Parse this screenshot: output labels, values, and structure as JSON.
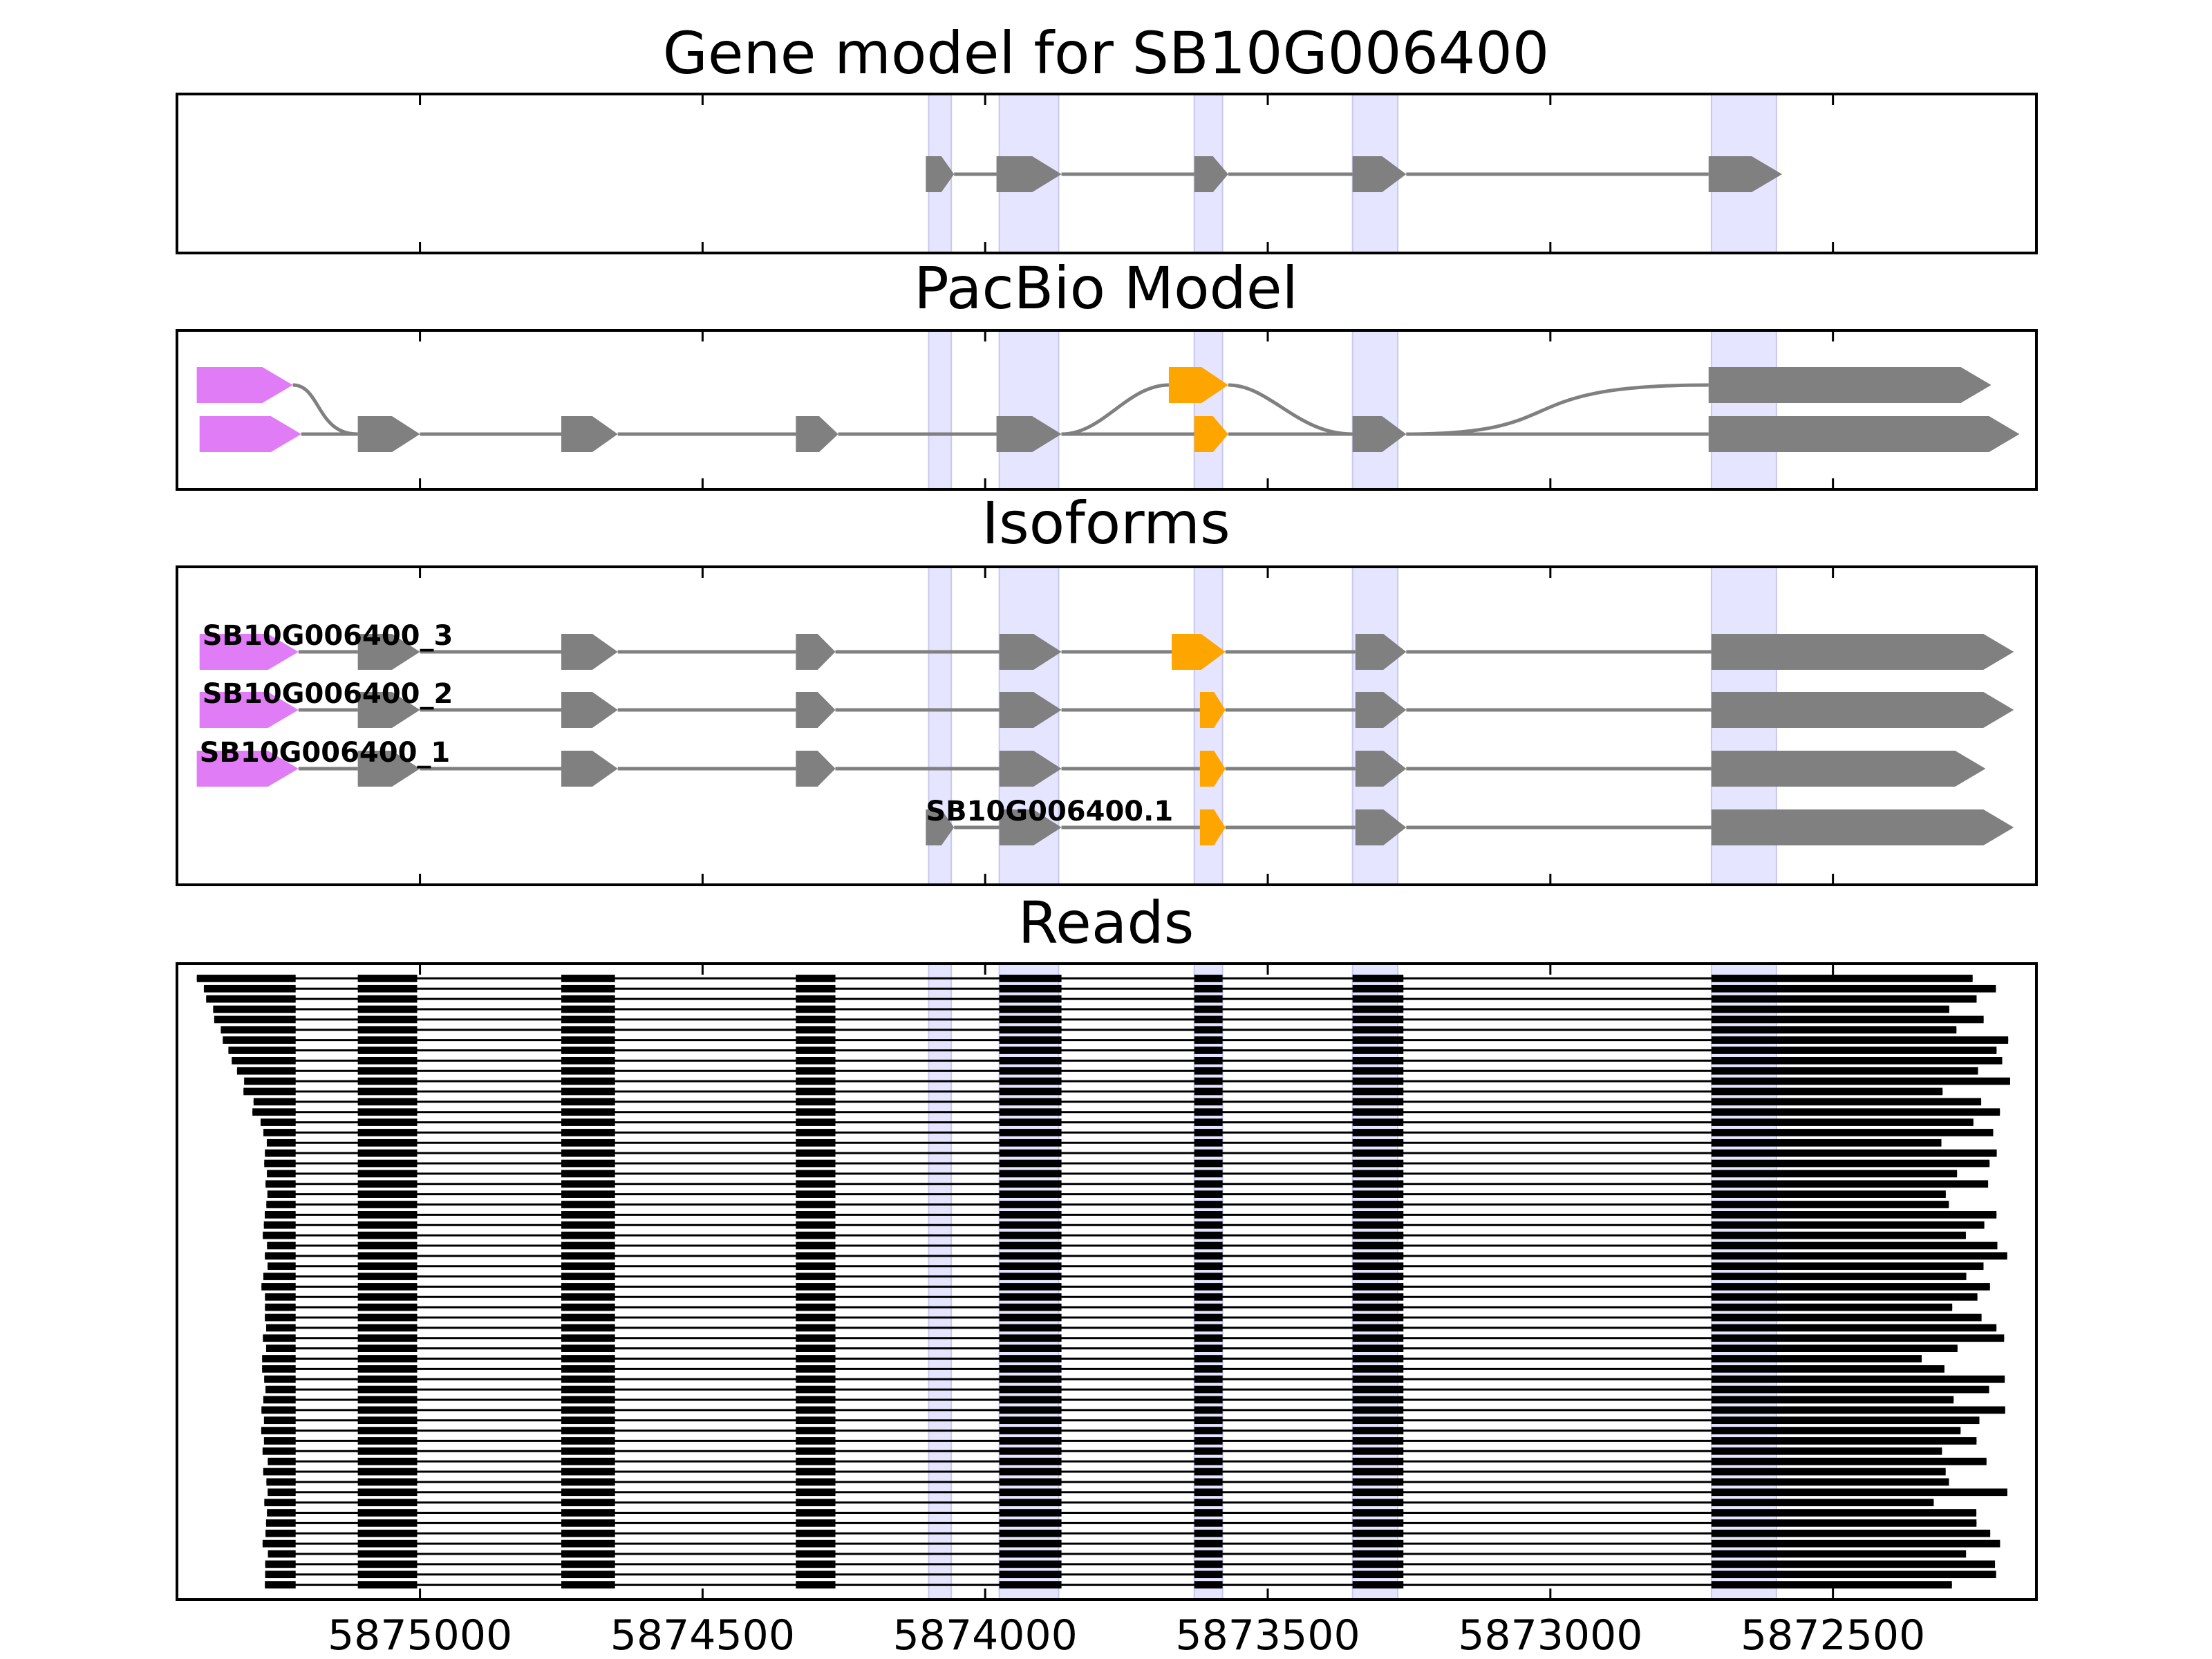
{
  "chart_data": {
    "type": "gene_structure",
    "x_axis": {
      "orientation": "reversed",
      "xlim": [
        5875430,
        5872140
      ],
      "ticks": [
        5875000,
        5874500,
        5874000,
        5873500,
        5873000,
        5872500
      ],
      "tick_labels": [
        "5875000",
        "5874500",
        "5874000",
        "5873500",
        "5873000",
        "5872500"
      ]
    },
    "colors": {
      "exon": "#808080",
      "intron": "#808080",
      "utr_5p": "#e07cf5",
      "alt_exon": "#ffa500",
      "highlight": "#e5e5ff",
      "read": "#000000"
    },
    "highlight_regions": [
      [
        5874100,
        5874060
      ],
      [
        5873975,
        5873870
      ],
      [
        5873630,
        5873580
      ],
      [
        5873350,
        5873270
      ],
      [
        5872715,
        5872600
      ]
    ],
    "panels": [
      {
        "key": "gene_model",
        "title": "Gene model for SB10G006400",
        "tracks": [
          {
            "exons": [
              [
                5874105,
                5874055
              ],
              [
                5873980,
                5873865
              ],
              [
                5873630,
                5873570
              ],
              [
                5873350,
                5873255
              ],
              [
                5872720,
                5872590
              ]
            ]
          }
        ]
      },
      {
        "key": "pacbio",
        "title": "PacBio Model",
        "tracks": [
          {
            "utr": [
              [
                5875395,
                5875225
              ]
            ],
            "exons": [
              [
                5873675,
                5873570,
                "alt"
              ],
              [
                5872720,
                5872220
              ]
            ]
          },
          {
            "utr": [
              [
                5875390,
                5875210
              ]
            ],
            "exons": [
              [
                5875110,
                5875000
              ],
              [
                5874750,
                5874650
              ],
              [
                5874335,
                5874260
              ],
              [
                5873980,
                5873865
              ],
              [
                5873630,
                5873570,
                "alt"
              ],
              [
                5873350,
                5873255
              ],
              [
                5872720,
                5872170
              ]
            ]
          }
        ]
      },
      {
        "key": "isoforms",
        "title": "Isoforms",
        "tracks": [
          {
            "label": "SB10G006400_3",
            "utr": [
              [
                5875390,
                5875215
              ]
            ],
            "exons": [
              [
                5875110,
                5875000
              ],
              [
                5874750,
                5874650
              ],
              [
                5874335,
                5874265
              ],
              [
                5873975,
                5873865
              ],
              [
                5873670,
                5873575,
                "alt"
              ],
              [
                5873345,
                5873255
              ],
              [
                5872715,
                5872180
              ]
            ]
          },
          {
            "label": "SB10G006400_2",
            "utr": [
              [
                5875390,
                5875215
              ]
            ],
            "exons": [
              [
                5875110,
                5875000
              ],
              [
                5874750,
                5874650
              ],
              [
                5874335,
                5874265
              ],
              [
                5873975,
                5873865
              ],
              [
                5873620,
                5873575,
                "alt"
              ],
              [
                5873345,
                5873255
              ],
              [
                5872715,
                5872180
              ]
            ]
          },
          {
            "label": "SB10G006400_1",
            "utr": [
              [
                5875395,
                5875215
              ]
            ],
            "exons": [
              [
                5875110,
                5875000
              ],
              [
                5874750,
                5874650
              ],
              [
                5874335,
                5874265
              ],
              [
                5873975,
                5873865
              ],
              [
                5873620,
                5873575,
                "alt"
              ],
              [
                5873345,
                5873255
              ],
              [
                5872715,
                5872230
              ]
            ]
          },
          {
            "label": "SB10G006400.1",
            "exons": [
              [
                5874105,
                5874055
              ],
              [
                5873975,
                5873865
              ],
              [
                5873620,
                5873575,
                "alt"
              ],
              [
                5873345,
                5873255
              ],
              [
                5872715,
                5872180
              ]
            ]
          }
        ]
      },
      {
        "key": "reads",
        "title": "Reads",
        "read_count": 60,
        "read_exon_blocks": [
          [
            5875110,
            5875005
          ],
          [
            5874750,
            5874655
          ],
          [
            5874335,
            5874265
          ],
          [
            5873975,
            5873865
          ],
          [
            5873630,
            5873580
          ],
          [
            5873350,
            5873260
          ]
        ]
      }
    ]
  }
}
